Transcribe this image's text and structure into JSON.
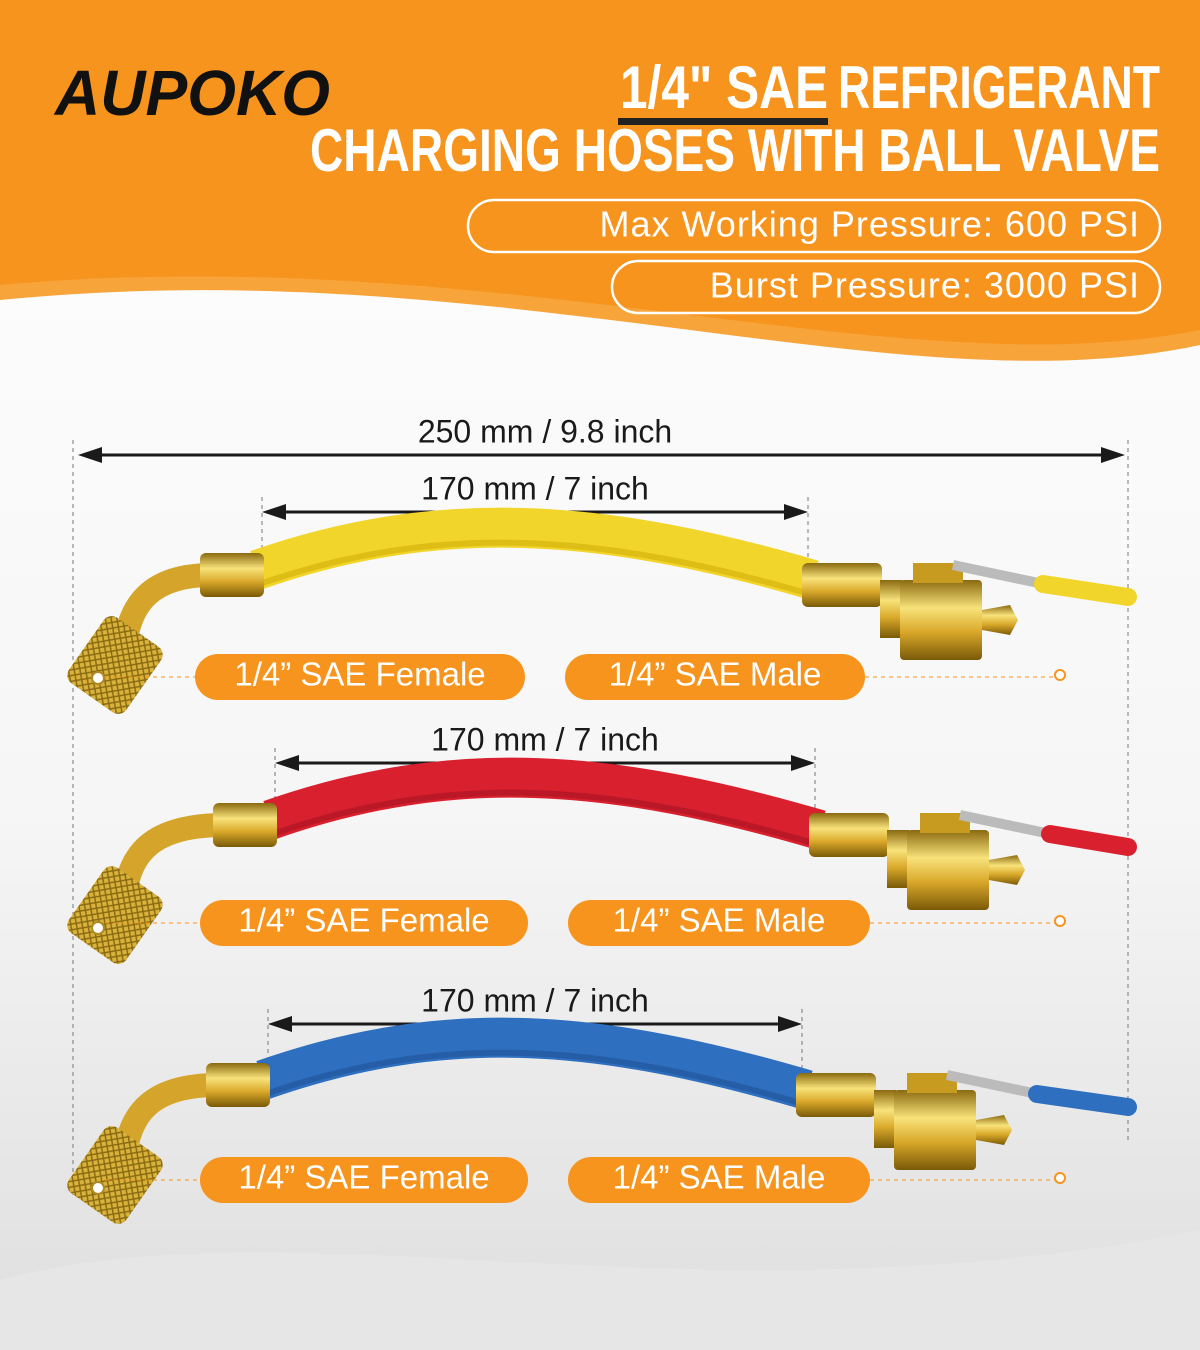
{
  "header": {
    "brand": "AUPOKO",
    "title": {
      "highlight": "1/4\" SAE",
      "rest": "REFRIGERANT",
      "line2": "CHARGING HOSES WITH BALL VALVE"
    },
    "specs": [
      "Max Working Pressure: 600 PSI",
      "Burst Pressure: 3000 PSI"
    ]
  },
  "dimension": {
    "overall": "250 mm / 9.8 inch"
  },
  "hoses": [
    {
      "length": "170 mm / 7 inch",
      "female": "1/4” SAE Female",
      "male": "1/4” SAE Male"
    },
    {
      "length": "170 mm / 7 inch",
      "female": "1/4” SAE Female",
      "male": "1/4” SAE Male"
    },
    {
      "length": "170 mm / 7 inch",
      "female": "1/4” SAE Female",
      "male": "1/4” SAE Male"
    }
  ]
}
